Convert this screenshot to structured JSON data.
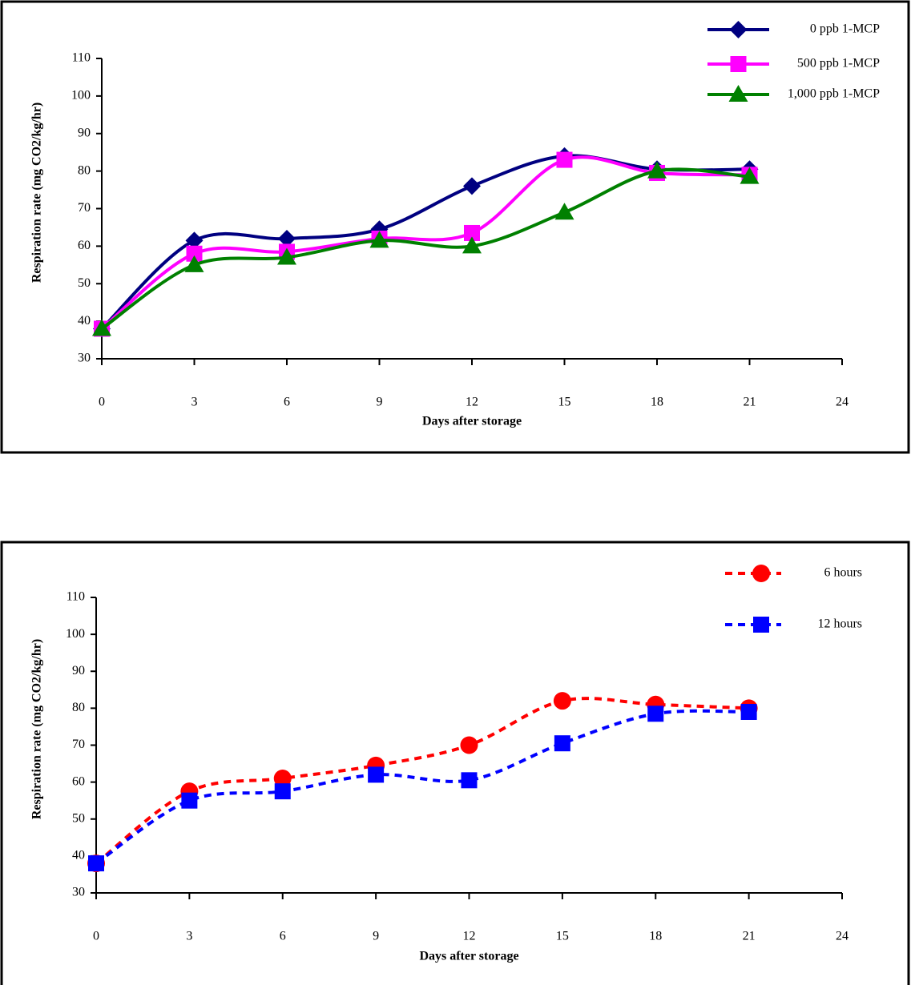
{
  "chart_data": [
    {
      "type": "line",
      "xlabel": "Days after storage",
      "ylabel": "Respiration rate (mg CO2/kg/hr)",
      "x": [
        0,
        3,
        6,
        9,
        12,
        15,
        18,
        21
      ],
      "xlim": [
        0,
        24
      ],
      "xticks": [
        0,
        3,
        6,
        9,
        12,
        15,
        18,
        21,
        24
      ],
      "ylim": [
        30,
        110
      ],
      "yticks": [
        30,
        40,
        50,
        60,
        70,
        80,
        90,
        100,
        110
      ],
      "legend": "upper right",
      "series": [
        {
          "name": "0 ppb 1-MCP",
          "color": "#000080",
          "marker": "diamond",
          "line_style": "solid",
          "values": [
            38,
            61.5,
            62,
            64.5,
            76,
            84,
            80.5,
            80.5
          ]
        },
        {
          "name": "500 ppb 1-MCP",
          "color": "#ff00ff",
          "marker": "square",
          "line_style": "solid",
          "values": [
            38,
            58,
            58.5,
            62,
            63.5,
            83,
            79.5,
            79
          ]
        },
        {
          "name": "1,000 ppb 1-MCP",
          "color": "#008000",
          "marker": "triangle",
          "line_style": "solid",
          "values": [
            38,
            55,
            57,
            61.5,
            60,
            69,
            80,
            78.5
          ]
        }
      ]
    },
    {
      "type": "line",
      "xlabel": "Days after storage",
      "ylabel": "Respiration rate (mg CO2/kg/hr)",
      "x": [
        0,
        3,
        6,
        9,
        12,
        15,
        18,
        21
      ],
      "xlim": [
        0,
        24
      ],
      "xticks": [
        0,
        3,
        6,
        9,
        12,
        15,
        18,
        21,
        24
      ],
      "ylim": [
        30,
        110
      ],
      "yticks": [
        30,
        40,
        50,
        60,
        70,
        80,
        90,
        100,
        110
      ],
      "legend": "upper right",
      "series": [
        {
          "name": "6 hours",
          "color": "#ff0000",
          "marker": "circle",
          "line_style": "dashed",
          "values": [
            38,
            57.5,
            61,
            64.5,
            70,
            82,
            81,
            80
          ]
        },
        {
          "name": "12 hours",
          "color": "#0000ff",
          "marker": "square",
          "line_style": "dashed",
          "values": [
            38,
            55,
            57.5,
            62,
            60.5,
            70.5,
            78.5,
            79
          ]
        }
      ]
    }
  ]
}
